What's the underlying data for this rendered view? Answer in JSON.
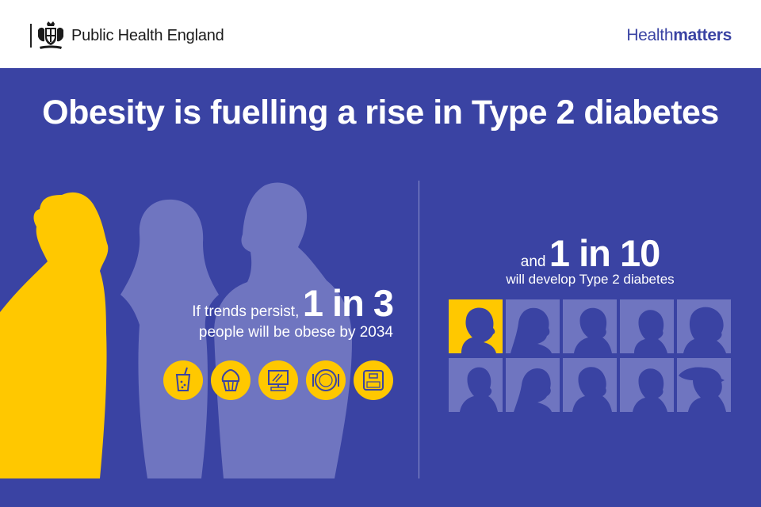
{
  "header": {
    "org_name": "Public Health England",
    "crest_icon": "royal-crest-icon",
    "brand_light": "Health",
    "brand_bold": "matters"
  },
  "headline": "Obesity is fuelling a rise in Type 2 diabetes",
  "left_stat": {
    "prefix": "If trends persist,",
    "figure": "1 in 3",
    "suffix": "people will be obese by 2034",
    "icons": [
      "sugary-drink-icon",
      "cupcake-icon",
      "computer-screen-icon",
      "plate-icon",
      "weighing-scale-icon"
    ]
  },
  "right_stat": {
    "prefix": "and",
    "figure": "1 in 10",
    "suffix": "will develop Type 2 diabetes",
    "people": {
      "total": 10,
      "highlighted": 1
    }
  },
  "colors": {
    "background": "#3a43a3",
    "accent_yellow": "#ffc800",
    "silhouette_light": "#6f75c0",
    "silhouette_dark": "#3a43a3",
    "header_bg": "#ffffff",
    "brand_text": "#3a43a3"
  }
}
